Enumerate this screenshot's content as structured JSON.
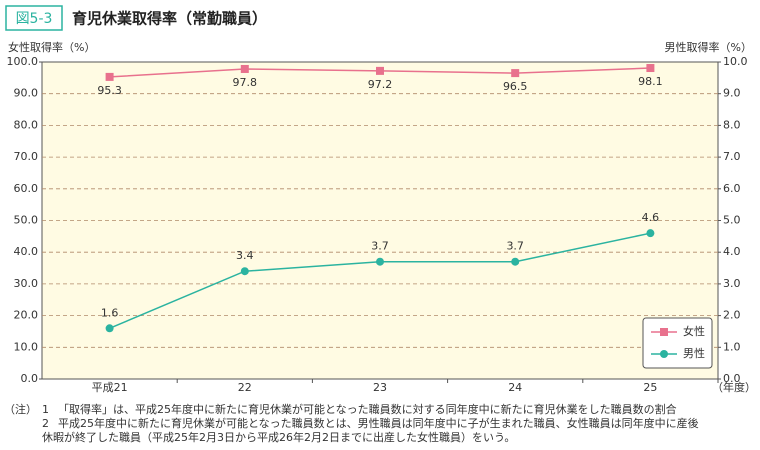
{
  "chart_data": {
    "type": "line",
    "figure_label": "図5-3",
    "title": "育児休業取得率（常勤職員）",
    "y_label": "女性取得率（%）",
    "y2_label": "男性取得率（%）",
    "x_label": "（年度）",
    "categories": [
      "平成21",
      "22",
      "23",
      "24",
      "25"
    ],
    "series": [
      {
        "name": "女性",
        "color": "#e8718d",
        "values": [
          95.3,
          97.8,
          97.2,
          96.5,
          98.1
        ]
      },
      {
        "name": "男性",
        "color": "#2bb3a0",
        "axis": "y2",
        "values": [
          1.6,
          3.4,
          3.7,
          3.7,
          4.6
        ]
      }
    ],
    "ylim": [
      0,
      100
    ],
    "yticks": [
      {
        "value": 0,
        "label": "0.0"
      },
      {
        "value": 10,
        "label": "10.0"
      },
      {
        "value": 20,
        "label": "20.0"
      },
      {
        "value": 30,
        "label": "30.0"
      },
      {
        "value": 40,
        "label": "40.0"
      },
      {
        "value": 50,
        "label": "50.0"
      },
      {
        "value": 60,
        "label": "60.0"
      },
      {
        "value": 70,
        "label": "70.0"
      },
      {
        "value": 80,
        "label": "80.0"
      },
      {
        "value": 90,
        "label": "90.0"
      },
      {
        "value": 100,
        "label": "100.0"
      }
    ],
    "y2lim": [
      0,
      10
    ],
    "y2ticks": [
      {
        "value": 0,
        "label": "0.0"
      },
      {
        "value": 1,
        "label": "1.0"
      },
      {
        "value": 2,
        "label": "2.0"
      },
      {
        "value": 3,
        "label": "3.0"
      },
      {
        "value": 4,
        "label": "4.0"
      },
      {
        "value": 5,
        "label": "5.0"
      },
      {
        "value": 6,
        "label": "6.0"
      },
      {
        "value": 7,
        "label": "7.0"
      },
      {
        "value": 8,
        "label": "8.0"
      },
      {
        "value": 9,
        "label": "9.0"
      },
      {
        "value": 10,
        "label": "10.0"
      }
    ],
    "grid": true,
    "legend": "lower right",
    "notes": {
      "label": "（注）",
      "items": [
        {
          "num": "1",
          "lines": [
            "「取得率」は、平成25年度中に新たに育児休業が可能となった職員数に対する同年度中に新たに育児休業をした職員数の割合"
          ]
        },
        {
          "num": "2",
          "lines": [
            "平成25年度中に新たに育児休業が可能となった職員数とは、男性職員は同年度中に子が生まれた職員、女性職員は同年度中に産後",
            "休暇が終了した職員（平成25年2月3日から平成26年2月2日までに出産した女性職員）をいう。"
          ]
        }
      ]
    }
  }
}
